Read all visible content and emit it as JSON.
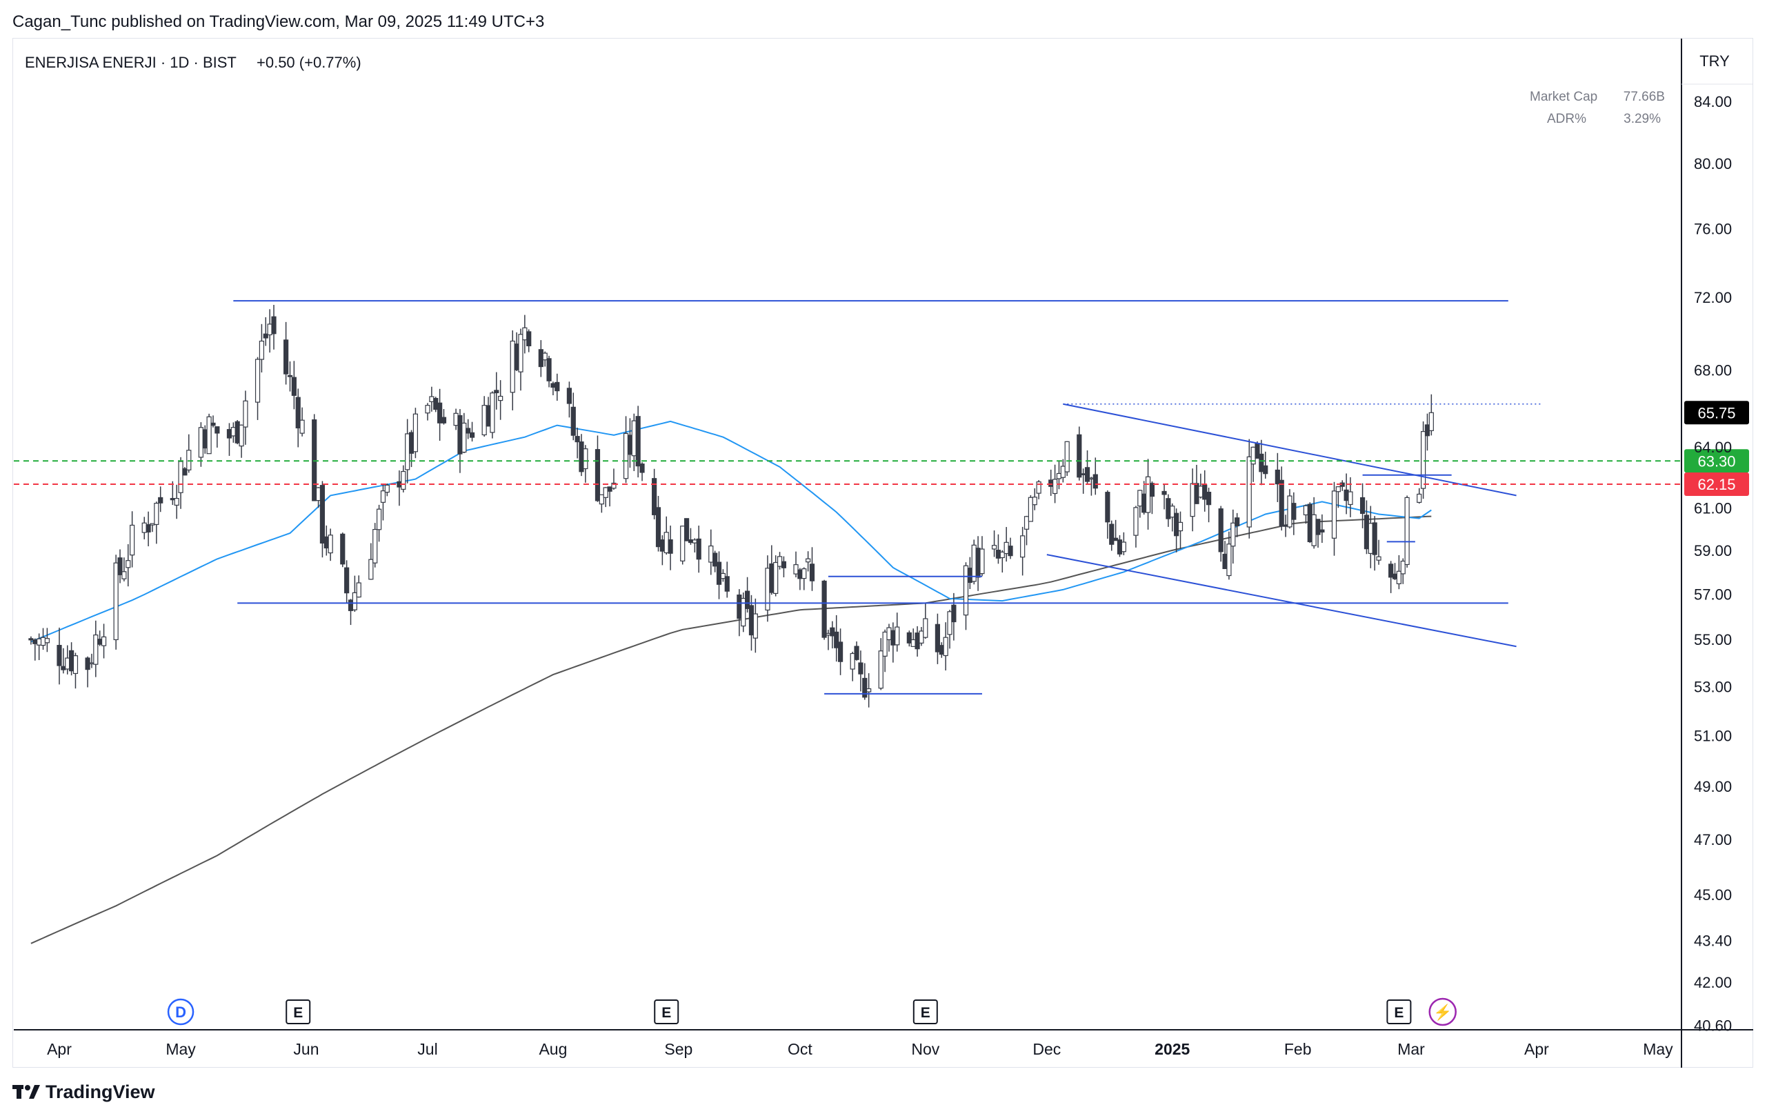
{
  "header": {
    "published_by": "Cagan_Tunc published on TradingView.com, Mar 09, 2025 11:49 UTC+3"
  },
  "legend": {
    "symbol": "ENERJISA ENERJI · 1D · BIST",
    "change": "+0.50 (+0.77%)"
  },
  "stats": {
    "market_cap_label": "Market Cap",
    "market_cap_value": "77.66B",
    "adr_label": "ADR%",
    "adr_value": "3.29%"
  },
  "currency": "TRY",
  "branding": {
    "logo_text": "TradingView"
  },
  "colors": {
    "candle": "#363a45",
    "sma_short": "#2196f3",
    "sma_long": "#555555",
    "trendline": "#2b50d6",
    "green_line": "#22ab3b",
    "red_line": "#f23645",
    "last_price_bg": "#000000"
  },
  "chart_data": {
    "type": "candlestick",
    "y_scale": "log",
    "ylim": [
      40.6,
      87
    ],
    "y_ticks": [
      "84.00",
      "80.00",
      "76.00",
      "72.00",
      "68.00",
      "64.00",
      "61.00",
      "59.00",
      "57.00",
      "55.00",
      "53.00",
      "51.00",
      "49.00",
      "47.00",
      "45.00",
      "43.40",
      "42.00",
      "40.60"
    ],
    "x_ticks": [
      {
        "label": "Apr",
        "date": "2024-04-01"
      },
      {
        "label": "May",
        "date": "2024-05-01"
      },
      {
        "label": "Jun",
        "date": "2024-06-01"
      },
      {
        "label": "Jul",
        "date": "2024-07-01"
      },
      {
        "label": "Aug",
        "date": "2024-08-01"
      },
      {
        "label": "Sep",
        "date": "2024-09-01"
      },
      {
        "label": "Oct",
        "date": "2024-10-01"
      },
      {
        "label": "Nov",
        "date": "2024-11-01"
      },
      {
        "label": "Dec",
        "date": "2024-12-01"
      },
      {
        "label": "2025",
        "date": "2025-01-01",
        "bold": true
      },
      {
        "label": "Feb",
        "date": "2025-02-01"
      },
      {
        "label": "Mar",
        "date": "2025-03-01"
      },
      {
        "label": "Apr",
        "date": "2025-04-01"
      },
      {
        "label": "May",
        "date": "2025-05-01"
      }
    ],
    "anchors": [
      {
        "date": "2024-03-25",
        "close": 55.0
      },
      {
        "date": "2024-04-08",
        "close": 54.0
      },
      {
        "date": "2024-04-18",
        "close": 59.0
      },
      {
        "date": "2024-04-30",
        "close": 62.5
      },
      {
        "date": "2024-05-06",
        "close": 65.0
      },
      {
        "date": "2024-05-14",
        "close": 64.5
      },
      {
        "date": "2024-05-23",
        "close": 70.5
      },
      {
        "date": "2024-05-30",
        "close": 66.0
      },
      {
        "date": "2024-06-05",
        "close": 60.0
      },
      {
        "date": "2024-06-12",
        "close": 56.6
      },
      {
        "date": "2024-06-20",
        "close": 61.0
      },
      {
        "date": "2024-07-01",
        "close": 66.0
      },
      {
        "date": "2024-07-10",
        "close": 64.5
      },
      {
        "date": "2024-07-17",
        "close": 66.5
      },
      {
        "date": "2024-07-26",
        "close": 70.5
      },
      {
        "date": "2024-08-01",
        "close": 68.0
      },
      {
        "date": "2024-08-07",
        "close": 64.0
      },
      {
        "date": "2024-08-14",
        "close": 61.5
      },
      {
        "date": "2024-08-21",
        "close": 64.5
      },
      {
        "date": "2024-08-28",
        "close": 59.5
      },
      {
        "date": "2024-09-05",
        "close": 60.0
      },
      {
        "date": "2024-09-12",
        "close": 57.0
      },
      {
        "date": "2024-09-19",
        "close": 55.5
      },
      {
        "date": "2024-09-26",
        "close": 59.0
      },
      {
        "date": "2024-10-02",
        "close": 58.5
      },
      {
        "date": "2024-10-08",
        "close": 55.0
      },
      {
        "date": "2024-10-16",
        "close": 53.0
      },
      {
        "date": "2024-10-24",
        "close": 55.5
      },
      {
        "date": "2024-11-01",
        "close": 55.0
      },
      {
        "date": "2024-11-05",
        "close": 54.5
      },
      {
        "date": "2024-11-12",
        "close": 58.5
      },
      {
        "date": "2024-11-22",
        "close": 58.5
      },
      {
        "date": "2024-12-02",
        "close": 62.5
      },
      {
        "date": "2024-12-06",
        "close": 64.0
      },
      {
        "date": "2024-12-12",
        "close": 62.0
      },
      {
        "date": "2024-12-19",
        "close": 59.0
      },
      {
        "date": "2024-12-26",
        "close": 62.0
      },
      {
        "date": "2025-01-02",
        "close": 60.0
      },
      {
        "date": "2025-01-09",
        "close": 62.5
      },
      {
        "date": "2025-01-15",
        "close": 58.5
      },
      {
        "date": "2025-01-22",
        "close": 64.0
      },
      {
        "date": "2025-01-28",
        "close": 61.0
      },
      {
        "date": "2025-02-05",
        "close": 60.0
      },
      {
        "date": "2025-02-14",
        "close": 61.5
      },
      {
        "date": "2025-02-20",
        "close": 59.0
      },
      {
        "date": "2025-02-25",
        "close": 57.5
      },
      {
        "date": "2025-02-28",
        "close": 60.5
      },
      {
        "date": "2025-03-03",
        "close": 62.5
      },
      {
        "date": "2025-03-04",
        "close": 65.5
      },
      {
        "date": "2025-03-05",
        "close": 65.25
      },
      {
        "date": "2025-03-06",
        "close": 65.75
      }
    ],
    "sma_short": [
      {
        "date": "2024-03-25",
        "value": 54.9
      },
      {
        "date": "2024-04-20",
        "value": 56.8
      },
      {
        "date": "2024-05-10",
        "value": 58.6
      },
      {
        "date": "2024-05-28",
        "value": 59.8
      },
      {
        "date": "2024-06-07",
        "value": 61.6
      },
      {
        "date": "2024-06-28",
        "value": 62.4
      },
      {
        "date": "2024-07-10",
        "value": 63.8
      },
      {
        "date": "2024-07-25",
        "value": 64.5
      },
      {
        "date": "2024-08-02",
        "value": 65.1
      },
      {
        "date": "2024-08-16",
        "value": 64.6
      },
      {
        "date": "2024-08-30",
        "value": 65.3
      },
      {
        "date": "2024-09-12",
        "value": 64.5
      },
      {
        "date": "2024-09-26",
        "value": 63.0
      },
      {
        "date": "2024-10-10",
        "value": 60.8
      },
      {
        "date": "2024-10-24",
        "value": 58.2
      },
      {
        "date": "2024-11-07",
        "value": 56.8
      },
      {
        "date": "2024-11-20",
        "value": 56.7
      },
      {
        "date": "2024-12-05",
        "value": 57.2
      },
      {
        "date": "2024-12-20",
        "value": 58.0
      },
      {
        "date": "2025-01-08",
        "value": 59.4
      },
      {
        "date": "2025-01-24",
        "value": 60.7
      },
      {
        "date": "2025-02-07",
        "value": 61.3
      },
      {
        "date": "2025-02-21",
        "value": 60.7
      },
      {
        "date": "2025-03-03",
        "value": 60.5
      },
      {
        "date": "2025-03-06",
        "value": 60.9
      }
    ],
    "sma_long": [
      {
        "date": "2024-03-25",
        "value": 43.3
      },
      {
        "date": "2024-04-15",
        "value": 44.6
      },
      {
        "date": "2024-05-10",
        "value": 46.4
      },
      {
        "date": "2024-06-05",
        "value": 48.7
      },
      {
        "date": "2024-07-01",
        "value": 50.9
      },
      {
        "date": "2024-08-01",
        "value": 53.5
      },
      {
        "date": "2024-09-01",
        "value": 55.4
      },
      {
        "date": "2024-10-01",
        "value": 56.3
      },
      {
        "date": "2024-11-01",
        "value": 56.6
      },
      {
        "date": "2024-12-01",
        "value": 57.5
      },
      {
        "date": "2025-01-01",
        "value": 59.0
      },
      {
        "date": "2025-02-01",
        "value": 60.3
      },
      {
        "date": "2025-03-06",
        "value": 60.6
      }
    ],
    "trendlines": [
      {
        "name": "range-top",
        "p1": {
          "date": "2024-05-14",
          "value": 71.8
        },
        "p2": {
          "date": "2025-03-25",
          "value": 71.8
        }
      },
      {
        "name": "range-bottom",
        "p1": {
          "date": "2024-05-15",
          "value": 56.6
        },
        "p2": {
          "date": "2025-03-25",
          "value": 56.6
        }
      },
      {
        "name": "range-mid-high",
        "p1": {
          "date": "2024-10-08",
          "value": 57.8
        },
        "p2": {
          "date": "2024-11-15",
          "value": 57.8
        }
      },
      {
        "name": "range-low",
        "p1": {
          "date": "2024-10-07",
          "value": 52.7
        },
        "p2": {
          "date": "2024-11-15",
          "value": 52.7
        }
      },
      {
        "name": "channel-upper",
        "p1": {
          "date": "2024-12-05",
          "value": 66.2
        },
        "p2": {
          "date": "2025-03-27",
          "value": 61.6
        }
      },
      {
        "name": "channel-lower",
        "p1": {
          "date": "2024-12-01",
          "value": 58.8
        },
        "p2": {
          "date": "2025-03-27",
          "value": 54.7
        }
      },
      {
        "name": "resistance-short",
        "p1": {
          "date": "2025-02-17",
          "value": 62.6
        },
        "p2": {
          "date": "2025-03-11",
          "value": 62.6
        }
      },
      {
        "name": "support-short",
        "p1": {
          "date": "2025-02-23",
          "value": 59.4
        },
        "p2": {
          "date": "2025-03-02",
          "value": 59.4
        }
      }
    ],
    "dotted_level": {
      "value": 66.2,
      "from": "2024-12-05",
      "to": "2025-04-02"
    },
    "horizontal_lines": [
      {
        "name": "green-level",
        "value": 63.3,
        "label": "63.30",
        "color": "#22ab3b"
      },
      {
        "name": "red-level",
        "value": 62.15,
        "label": "62.15",
        "color": "#f23645"
      }
    ],
    "last_price": {
      "value": 65.75,
      "label": "65.75"
    },
    "events": [
      {
        "type": "D",
        "date": "2024-05-01",
        "label": "D"
      },
      {
        "type": "E",
        "date": "2024-05-30",
        "label": "E"
      },
      {
        "type": "E",
        "date": "2024-08-29",
        "label": "E"
      },
      {
        "type": "E",
        "date": "2024-11-01",
        "label": "E"
      },
      {
        "type": "E",
        "date": "2025-02-26",
        "label": "E"
      },
      {
        "type": "flash",
        "date": "2025-03-03",
        "label": "⚡"
      }
    ]
  }
}
